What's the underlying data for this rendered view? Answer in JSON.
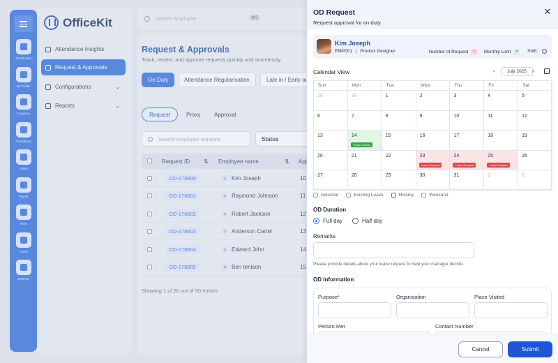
{
  "rail": {
    "items": [
      {
        "label": "Dashboard",
        "icon": "grid-icon"
      },
      {
        "label": "My Profile",
        "icon": "user-icon"
      },
      {
        "label": "Company",
        "icon": "building-icon"
      },
      {
        "label": "Attendance",
        "icon": "bookmark-icon"
      },
      {
        "label": "Leave",
        "icon": "leave-icon"
      },
      {
        "label": "Payroll",
        "icon": "dollar-icon"
      },
      {
        "label": "PMS",
        "icon": "chart-icon"
      },
      {
        "label": "Travel",
        "icon": "plane-icon"
      },
      {
        "label": "Settings",
        "icon": "gear-icon"
      }
    ]
  },
  "brand": {
    "name": "OfficeKit"
  },
  "nav": {
    "items": [
      {
        "label": "Attendance Insights"
      },
      {
        "label": "Request & Approvals"
      },
      {
        "label": "Configurations"
      },
      {
        "label": "Reports"
      }
    ]
  },
  "topbar": {
    "search_placeholder": "Search employee",
    "shortcut": "⌘S"
  },
  "main": {
    "title": "Request & Approvals",
    "subtitle": "Track, review, and approve requests quickly and seamlessly.",
    "type_tabs": [
      "On Duty",
      "Attendance Regularisation",
      "Late in / Early out"
    ],
    "sub_tabs": [
      "Request",
      "Proxy",
      "Approval"
    ],
    "search_placeholder": "Search employee requests",
    "status_label": "Status",
    "columns": [
      "Request ID",
      "Employee name",
      "App"
    ],
    "rows": [
      {
        "id": "OD-178800",
        "initial": "K",
        "name": "Kim Joseph",
        "date": "10 S"
      },
      {
        "id": "OD-178801",
        "initial": "R",
        "name": "Raymond Johnson",
        "date": "11 S"
      },
      {
        "id": "OD-178802",
        "initial": "R",
        "name": "Robert Jackson",
        "date": "12 S"
      },
      {
        "id": "OD-178803",
        "initial": "A",
        "name": "Anderson Cartel",
        "date": "13 S"
      },
      {
        "id": "OD-178804",
        "initial": "E",
        "name": "Edward John",
        "date": "14 S"
      },
      {
        "id": "OD-178805",
        "initial": "B",
        "name": "Ben tenison",
        "date": "15 S"
      }
    ],
    "showing": "Showing 1 of 20 out of 50 entries"
  },
  "drawer": {
    "title": "OD Request",
    "subtitle": "Request approval for on-duty",
    "employee": {
      "name": "Kim Joseph",
      "id": "EMP001",
      "role": "Product Designer",
      "requests_label": "Number of Request",
      "requests_value": "1",
      "limit_label": "Monthly Limit",
      "limit_value": "4",
      "shift_label": "Shift:"
    },
    "calendar": {
      "label": "Calendar View",
      "month": "July 2025",
      "weekdays": [
        "Sun",
        "Mon",
        "Tue",
        "Wed",
        "Thu",
        "Fri",
        "Sat"
      ],
      "weeks": [
        [
          {
            "d": "29",
            "m": true
          },
          {
            "d": "30",
            "m": true
          },
          {
            "d": "1"
          },
          {
            "d": "2"
          },
          {
            "d": "3"
          },
          {
            "d": "4"
          },
          {
            "d": "5"
          }
        ],
        [
          {
            "d": "6"
          },
          {
            "d": "7"
          },
          {
            "d": "8"
          },
          {
            "d": "9"
          },
          {
            "d": "10"
          },
          {
            "d": "11"
          },
          {
            "d": "12"
          }
        ],
        [
          {
            "d": "13"
          },
          {
            "d": "14",
            "type": "holiday",
            "tag": "Public Holiday"
          },
          {
            "d": "15"
          },
          {
            "d": "16"
          },
          {
            "d": "17"
          },
          {
            "d": "18"
          },
          {
            "d": "19"
          }
        ],
        [
          {
            "d": "20"
          },
          {
            "d": "21"
          },
          {
            "d": "22"
          },
          {
            "d": "23",
            "type": "leave",
            "tag": "Leave Request"
          },
          {
            "d": "24",
            "type": "leave",
            "tag": "Leave Request"
          },
          {
            "d": "25",
            "type": "leave",
            "tag": "Leave Request"
          },
          {
            "d": "26"
          }
        ],
        [
          {
            "d": "27"
          },
          {
            "d": "28"
          },
          {
            "d": "29"
          },
          {
            "d": "30"
          },
          {
            "d": "31"
          },
          {
            "d": "1",
            "m": true
          },
          {
            "d": "2",
            "m": true
          }
        ]
      ],
      "legend": [
        "Selected",
        "Existing Leave",
        "Holiday",
        "Weekend"
      ]
    },
    "duration": {
      "label": "OD Duration",
      "options": [
        "Full day",
        "Half day"
      ],
      "selected": "Full day"
    },
    "remarks": {
      "label": "Remarks",
      "hint": "Please provide details about your leave request to help your manager decide."
    },
    "od_info": {
      "label": "OD Information",
      "purpose": "Purpose*",
      "organisation": "Organisation",
      "place": "Place Visited",
      "person": "Person Met",
      "contact": "Contact Number"
    },
    "cancel": "Cancel",
    "submit": "Submit"
  },
  "colors": {
    "accent": "#2f6fde",
    "holiday": "#3aa048",
    "leave": "#d24a4a"
  }
}
